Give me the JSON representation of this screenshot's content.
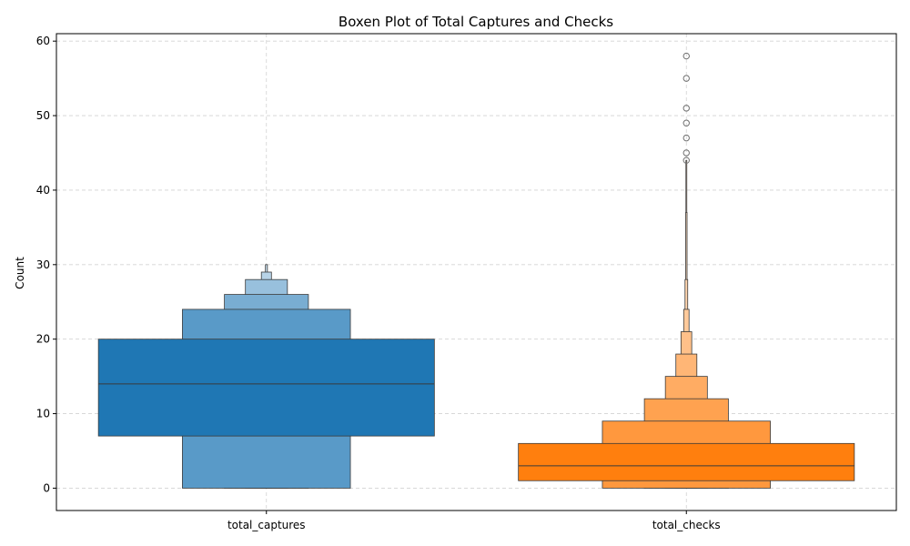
{
  "chart_data": {
    "type": "boxen",
    "title": "Boxen Plot of Total Captures and Checks",
    "xlabel": "",
    "ylabel": "Count",
    "ylim": [
      -3,
      61
    ],
    "yticks": [
      0,
      10,
      20,
      30,
      40,
      50,
      60
    ],
    "grid": true,
    "categories": [
      "total_captures",
      "total_checks"
    ],
    "series": [
      {
        "category": "total_captures",
        "base_color": "#1f77b4",
        "median": 14,
        "boxes": [
          {
            "level": 1,
            "lower": 7,
            "upper": 20,
            "width_fraction": 1.0
          },
          {
            "level": 2,
            "lower": 0,
            "upper": 24,
            "width_fraction": 0.5
          },
          {
            "level": 3,
            "lower": 0,
            "upper": 26,
            "width_fraction": 0.25
          },
          {
            "level": 4,
            "lower": 0,
            "upper": 28,
            "width_fraction": 0.125
          },
          {
            "level": 5,
            "lower": 0,
            "upper": 29,
            "width_fraction": 0.03
          },
          {
            "level": 6,
            "lower": 0,
            "upper": 30,
            "width_fraction": 0.006
          }
        ],
        "outliers": []
      },
      {
        "category": "total_checks",
        "base_color": "#ff7f0e",
        "median": 3,
        "boxes": [
          {
            "level": 1,
            "lower": 1,
            "upper": 6,
            "width_fraction": 1.0
          },
          {
            "level": 2,
            "lower": 0,
            "upper": 9,
            "width_fraction": 0.5
          },
          {
            "level": 3,
            "lower": 0,
            "upper": 12,
            "width_fraction": 0.25
          },
          {
            "level": 4,
            "lower": 0,
            "upper": 15,
            "width_fraction": 0.125
          },
          {
            "level": 5,
            "lower": 0,
            "upper": 18,
            "width_fraction": 0.0625
          },
          {
            "level": 6,
            "lower": 0,
            "upper": 21,
            "width_fraction": 0.032
          },
          {
            "level": 7,
            "lower": 0,
            "upper": 24,
            "width_fraction": 0.016
          },
          {
            "level": 8,
            "lower": 0,
            "upper": 28,
            "width_fraction": 0.008
          },
          {
            "level": 9,
            "lower": 0,
            "upper": 37,
            "width_fraction": 0.004
          },
          {
            "level": 10,
            "lower": 0,
            "upper": 44,
            "width_fraction": 0.002
          }
        ],
        "outliers": [
          44,
          45,
          47,
          49,
          51,
          55,
          58
        ]
      }
    ]
  }
}
